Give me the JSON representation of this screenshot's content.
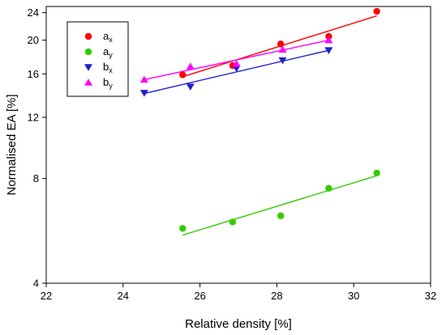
{
  "chart_data": {
    "type": "scatter",
    "xlabel": "Relative density [%]",
    "ylabel": "Normalised EA [%]",
    "xlim": [
      22,
      32
    ],
    "ylim": [
      4,
      25
    ],
    "yscale": "log",
    "xticks": [
      22,
      24,
      26,
      28,
      30,
      32
    ],
    "yticks": [
      4,
      8,
      12,
      16,
      20,
      24
    ],
    "grid": false,
    "legend_position": "top-left",
    "series": [
      {
        "name": "a",
        "subscript": "x",
        "marker": "circle",
        "color": "#ff0000",
        "x": [
          25.55,
          26.85,
          28.1,
          29.35,
          30.6
        ],
        "y": [
          15.9,
          16.9,
          19.5,
          20.5,
          24.2
        ],
        "fit": [
          [
            25.55,
            15.7
          ],
          [
            30.6,
            23.5
          ]
        ]
      },
      {
        "name": "a",
        "subscript": "y",
        "marker": "circle",
        "color": "#33cc00",
        "x": [
          25.55,
          26.85,
          28.1,
          29.35,
          30.6
        ],
        "y": [
          5.75,
          6.0,
          6.25,
          7.5,
          8.3
        ],
        "fit": [
          [
            25.55,
            5.5
          ],
          [
            30.6,
            8.15
          ]
        ]
      },
      {
        "name": "b",
        "subscript": "x",
        "marker": "triangle-down",
        "color": "#1f1fcc",
        "x": [
          24.55,
          25.75,
          26.95,
          28.15,
          29.35
        ],
        "y": [
          14.1,
          14.7,
          16.6,
          17.5,
          18.7
        ],
        "fit": [
          [
            24.55,
            14.05
          ],
          [
            29.35,
            18.7
          ]
        ]
      },
      {
        "name": "b",
        "subscript": "y",
        "marker": "triangle-up",
        "color": "#ff00ff",
        "x": [
          24.55,
          25.75,
          26.95,
          28.15,
          29.35
        ],
        "y": [
          15.4,
          16.8,
          17.1,
          18.8,
          20.0
        ],
        "fit": [
          [
            24.55,
            15.4
          ],
          [
            29.35,
            20.0
          ]
        ]
      }
    ]
  }
}
